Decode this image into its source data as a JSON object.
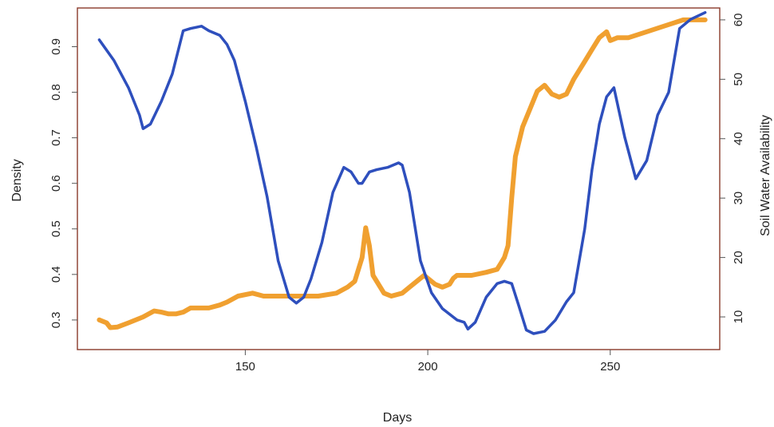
{
  "chart_data": {
    "type": "line",
    "title": "",
    "xlabel": "Days",
    "ylabel": "Density",
    "ylabel_right": "Soil Water  Availability",
    "xlim": [
      104,
      280
    ],
    "ylim": [
      0.235,
      0.985
    ],
    "ylim_right": [
      4.5,
      62
    ],
    "xticks": [
      150,
      200,
      250
    ],
    "yticks": [
      0.3,
      0.4,
      0.5,
      0.6,
      0.7,
      0.8,
      0.9
    ],
    "yticks_right": [
      10,
      20,
      30,
      40,
      50,
      60
    ],
    "grid": false,
    "legend": "none",
    "series": [
      {
        "axis": "left",
        "color": "#2e4fbd",
        "x": [
          110,
          114,
          118,
          121,
          122,
          124,
          127,
          130,
          133,
          135,
          138,
          140,
          143,
          145,
          147,
          150,
          153,
          156,
          159,
          162,
          164,
          166,
          168,
          171,
          174,
          177,
          179,
          181,
          182,
          184,
          186,
          189,
          192,
          193,
          195,
          198,
          201,
          204,
          208,
          210,
          211,
          213,
          216,
          219,
          221,
          223,
          225,
          227,
          229,
          232,
          235,
          238,
          240,
          243,
          245,
          247,
          249,
          251,
          254,
          257,
          260,
          263,
          266,
          269,
          272,
          276
        ],
        "y": [
          0.915,
          0.87,
          0.81,
          0.75,
          0.72,
          0.73,
          0.78,
          0.84,
          0.935,
          0.94,
          0.945,
          0.935,
          0.925,
          0.905,
          0.87,
          0.78,
          0.68,
          0.57,
          0.43,
          0.35,
          0.337,
          0.35,
          0.39,
          0.47,
          0.58,
          0.635,
          0.625,
          0.6,
          0.6,
          0.625,
          0.63,
          0.635,
          0.645,
          0.64,
          0.58,
          0.43,
          0.36,
          0.325,
          0.3,
          0.295,
          0.28,
          0.295,
          0.35,
          0.38,
          0.385,
          0.38,
          0.33,
          0.278,
          0.27,
          0.275,
          0.3,
          0.34,
          0.36,
          0.5,
          0.63,
          0.73,
          0.79,
          0.81,
          0.7,
          0.61,
          0.65,
          0.75,
          0.8,
          0.94,
          0.96,
          0.975
        ]
      },
      {
        "axis": "right",
        "color": "#f0a030",
        "x": [
          110,
          112,
          113,
          115,
          118,
          122,
          125,
          127,
          129,
          131,
          133,
          135,
          140,
          143,
          145,
          148,
          152,
          155,
          160,
          165,
          170,
          175,
          178,
          180,
          182,
          183,
          184,
          185,
          187,
          188,
          190,
          193,
          195,
          197,
          199,
          200,
          202,
          204,
          206,
          207,
          208,
          212,
          216,
          219,
          220,
          221,
          222,
          223,
          224,
          226,
          228,
          230,
          232,
          234,
          236,
          238,
          240,
          243,
          245,
          247,
          249,
          250,
          252,
          255,
          260,
          265,
          270,
          276
        ],
        "y": [
          9.5,
          9,
          8.2,
          8.3,
          9,
          10,
          11,
          10.8,
          10.5,
          10.5,
          10.8,
          11.5,
          11.5,
          12,
          12.5,
          13.5,
          14,
          13.5,
          13.5,
          13.5,
          13.5,
          14,
          15,
          16,
          20,
          25,
          22,
          17,
          15,
          14,
          13.5,
          14,
          15,
          16,
          17,
          16.5,
          15.5,
          15,
          15.5,
          16.5,
          17,
          17,
          17.5,
          18,
          19,
          20,
          22,
          30,
          37,
          42,
          45,
          48,
          49,
          47.5,
          47,
          47.5,
          50,
          53,
          55,
          57,
          58,
          56.5,
          57,
          57,
          58,
          59,
          60,
          60
        ]
      }
    ]
  }
}
